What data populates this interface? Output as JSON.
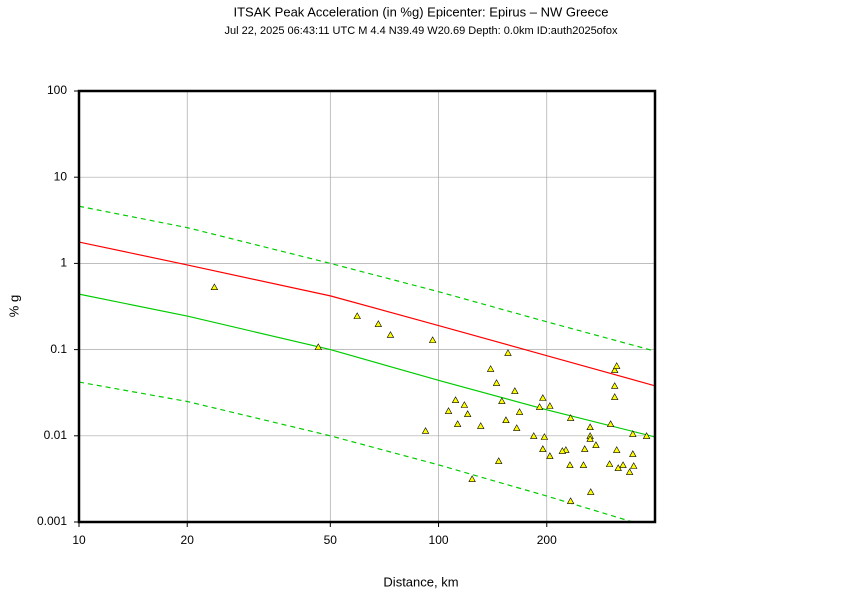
{
  "chart_data": {
    "type": "scatter",
    "title": "ITSAK Peak Acceleration (in %g) Epicenter: Epirus – NW Greece",
    "subtitle": "Jul 22, 2025 06:43:11 UTC   M 4.4   N39.49 W20.69   Depth: 0.0km   ID:auth2025ofox",
    "x_label": "Distance, km",
    "y_label": "% g",
    "xscale": "log",
    "yscale": "log",
    "grid": true,
    "xlim": [
      10,
      400
    ],
    "ylim": [
      0.001,
      100
    ],
    "xticks": [
      10,
      20,
      50,
      100,
      200
    ],
    "yticks": [
      100,
      10,
      1,
      0.1,
      0.01,
      0.001
    ],
    "color": "#ffff00",
    "x": [
      23.8,
      46.3,
      59.4,
      68,
      73.5,
      92,
      96.3,
      111.5,
      106.6,
      113,
      118,
      120.5,
      131,
      124,
      139.6,
      145,
      150,
      154,
      147,
      156,
      163,
      165,
      168,
      184,
      191,
      195,
      197,
      195,
      204,
      204,
      226,
      221,
      233,
      232,
      233,
      253,
      255,
      264,
      264,
      264,
      265,
      274,
      301,
      299,
      309,
      313,
      309,
      309,
      313,
      316,
      326,
      340,
      347,
      347,
      349,
      379
    ],
    "values": [
      0.53,
      0.107,
      0.245,
      0.198,
      0.148,
      0.0114,
      0.129,
      0.026,
      0.0194,
      0.0137,
      0.0228,
      0.0179,
      0.013,
      0.00315,
      0.0596,
      0.041,
      0.0253,
      0.0152,
      0.0051,
      0.0914,
      0.0331,
      0.0123,
      0.0189,
      0.00995,
      0.0216,
      0.0275,
      0.0097,
      0.00703,
      0.0222,
      0.00583,
      0.00685,
      0.00667,
      0.0161,
      0.00458,
      0.00175,
      0.00458,
      0.00703,
      0.0126,
      0.00995,
      0.0092,
      0.00223,
      0.00782,
      0.0137,
      0.0047,
      0.058,
      0.0646,
      0.0379,
      0.0282,
      0.00685,
      0.00423,
      0.00458,
      0.0038,
      0.0105,
      0.00615,
      0.00447,
      0.00995
    ],
    "lines": [
      {
        "color": "#ff0000",
        "style": "solid",
        "x": [
          10,
          20,
          50,
          100,
          200,
          400
        ],
        "values": [
          1.77,
          0.96,
          0.42,
          0.19,
          0.085,
          0.038
        ]
      },
      {
        "color": "#00cc00",
        "style": "solid",
        "x": [
          10,
          20,
          50,
          100,
          200,
          400
        ],
        "values": [
          0.44,
          0.245,
          0.1,
          0.044,
          0.02,
          0.0097
        ]
      },
      {
        "color": "#00cc00",
        "style": "dashed",
        "x": [
          10,
          20,
          50,
          100,
          200,
          400
        ],
        "values": [
          4.6,
          2.6,
          1.0,
          0.47,
          0.21,
          0.096
        ]
      },
      {
        "color": "#00cc00",
        "style": "dashed",
        "x": [
          10,
          20,
          50,
          100,
          200,
          347
        ],
        "values": [
          0.042,
          0.025,
          0.01,
          0.0046,
          0.002,
          0.001
        ]
      }
    ]
  }
}
